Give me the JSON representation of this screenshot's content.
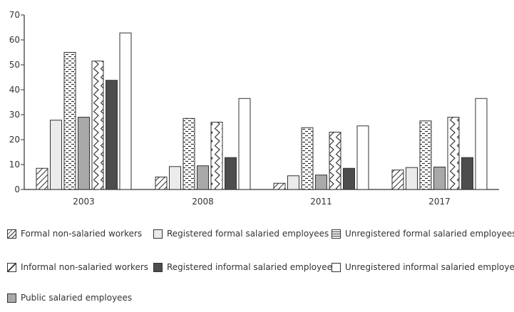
{
  "colors": {
    "axis": "#333333",
    "registered_formal_fill": "#ebebeb",
    "public_fill": "#a9a9a9",
    "registered_informal_fill": "#4d4d4d",
    "outline": "#333333"
  },
  "chart_data": {
    "type": "bar",
    "title": "",
    "xlabel": "",
    "ylabel": "",
    "ylim": [
      0,
      70
    ],
    "yticks": [
      "0",
      "10",
      "20",
      "30",
      "40",
      "50",
      "60",
      "70"
    ],
    "categories": [
      "2003",
      "2008",
      "2011",
      "2017"
    ],
    "grid": false,
    "legend_position": "bottom",
    "series": [
      {
        "name": "Formal non-salaried workers",
        "pattern": "diagonal-hatch",
        "values": [
          8.5,
          5.0,
          2.5,
          7.8
        ]
      },
      {
        "name": "Registered formal salaried employees",
        "pattern": "light-gray",
        "values": [
          27.8,
          9.2,
          5.5,
          8.8
        ]
      },
      {
        "name": "Unregistered formal salaried employees",
        "pattern": "dash-dot",
        "values": [
          55.0,
          28.5,
          24.8,
          27.5
        ]
      },
      {
        "name": "Public salaried employees",
        "pattern": "medium-gray",
        "values": [
          29.0,
          9.5,
          5.8,
          9.0
        ]
      },
      {
        "name": "Informal non-salaried workers",
        "pattern": "zigzag",
        "values": [
          51.5,
          27.0,
          23.0,
          29.0
        ]
      },
      {
        "name": "Registered informal salaried employees",
        "pattern": "dark-gray",
        "values": [
          43.8,
          12.8,
          8.5,
          12.8
        ]
      },
      {
        "name": "Unregistered informal salaried employees",
        "pattern": "white",
        "values": [
          62.8,
          36.5,
          25.5,
          36.5
        ]
      }
    ]
  },
  "legend": [
    {
      "label": "Formal non-salaried workers",
      "pattern": "diagonal-hatch"
    },
    {
      "label": "Registered formal salaried employees",
      "pattern": "light-gray"
    },
    {
      "label": "Unregistered formal salaried employees",
      "pattern": "dash-dot"
    },
    {
      "label": "Informal non-salaried workers",
      "pattern": "zigzag"
    },
    {
      "label": "Registered informal salaried employees",
      "pattern": "dark-gray"
    },
    {
      "label": "Unregistered informal salaried employees",
      "pattern": "white"
    },
    {
      "label": "Public salaried employees",
      "pattern": "medium-gray"
    }
  ]
}
